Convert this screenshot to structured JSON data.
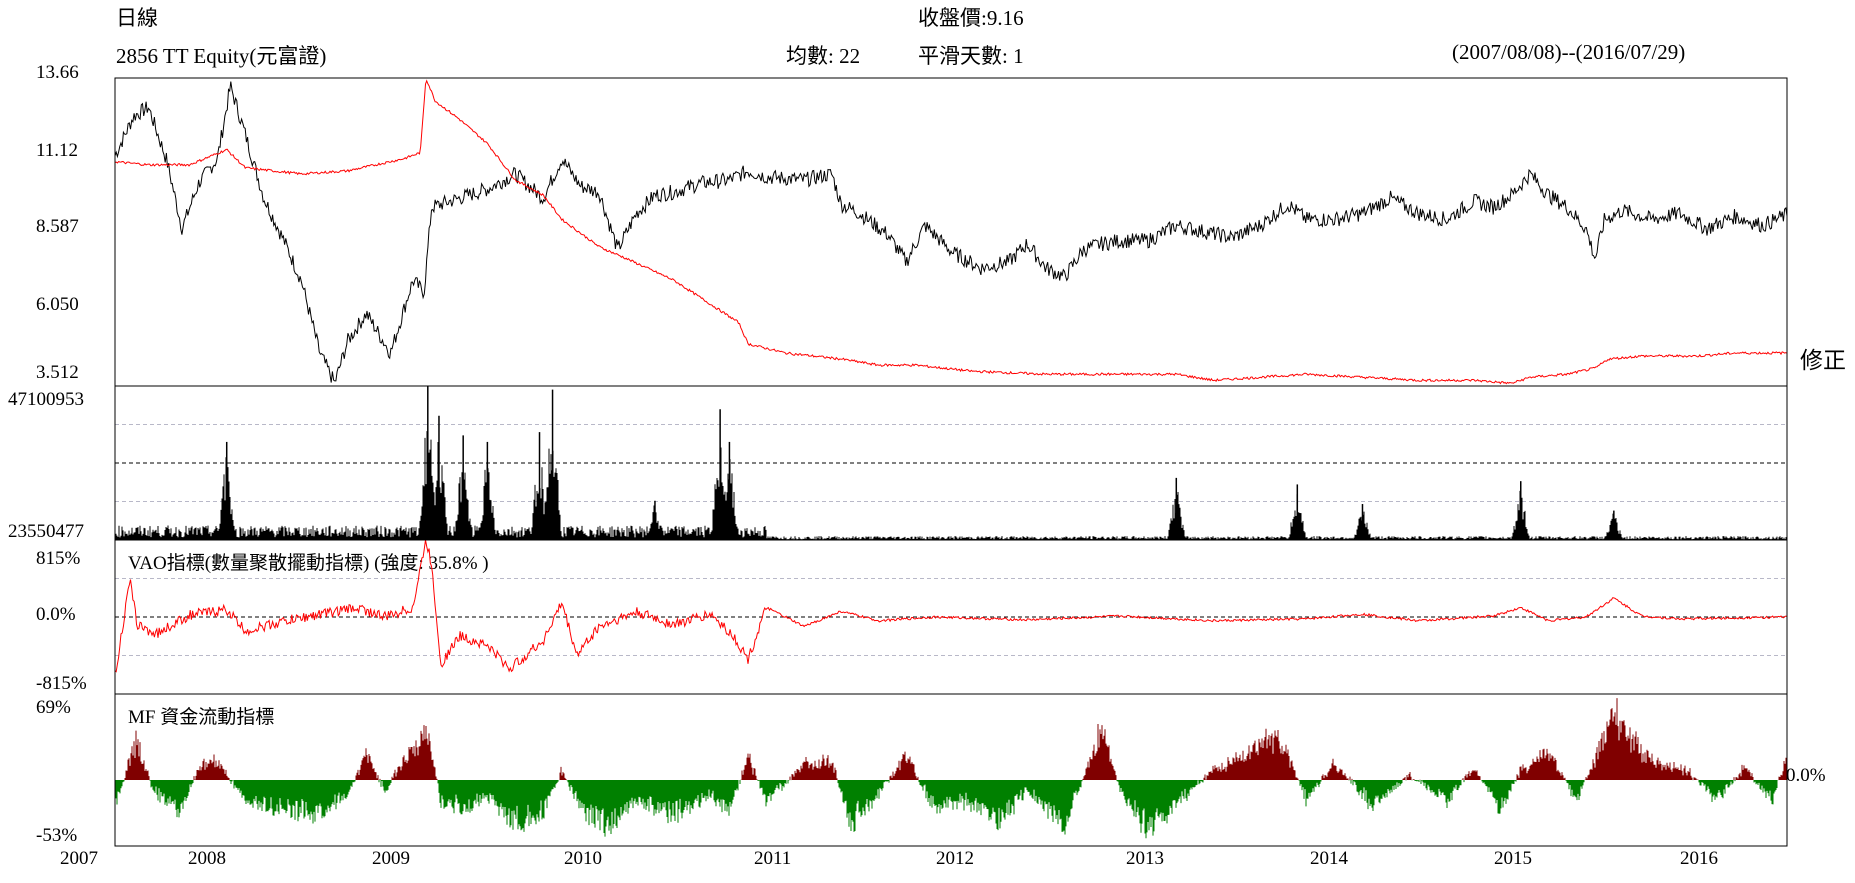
{
  "header": {
    "period": "日線",
    "close_label": "收盤價:",
    "close_value": "9.16",
    "ticker": "2856 TT Equity(元富證)",
    "avg_label": "均數:",
    "avg_value": "22",
    "smooth_label": "平滑天數:",
    "smooth_value": "1",
    "date_range": "(2007/08/08)--(2016/07/29)"
  },
  "colors": {
    "price": "#000000",
    "adjusted": "#ff0000",
    "volume": "#000000",
    "vao": "#ff0000",
    "mf_positive": "#800000",
    "mf_negative": "#008000",
    "grid": "#b8b8c8",
    "frame": "#000000"
  },
  "chart_data": [
    {
      "type": "line",
      "panel": "price",
      "y_ticks": [
        "13.66",
        "11.12",
        "8.587",
        "6.050",
        "3.512"
      ],
      "ylim": [
        3.512,
        13.66
      ],
      "series_label": "修正",
      "series": [
        {
          "name": "",
          "x": [
            2007.6,
            2007.7,
            2007.78,
            2007.88,
            2007.96,
            2008.05,
            2008.15,
            2008.22,
            2008.3,
            2008.4,
            2008.5,
            2008.6,
            2008.7,
            2008.78,
            2008.85,
            2008.95,
            2009.0,
            2009.08,
            2009.15,
            2009.2,
            2009.26,
            2009.3,
            2009.4,
            2009.5,
            2009.6,
            2009.75,
            2009.9,
            2010.0,
            2010.1,
            2010.2,
            2010.3,
            2010.4,
            2010.5,
            2010.6,
            2010.75,
            2010.9,
            2011.0,
            2011.1,
            2011.3,
            2011.45,
            2011.5,
            2011.6,
            2011.75,
            2011.85,
            2011.95,
            2012.1,
            2012.25,
            2012.4,
            2012.5,
            2012.6,
            2012.7,
            2012.8,
            2012.9,
            2013.0,
            2013.15,
            2013.3,
            2013.45,
            2013.6,
            2013.75,
            2013.9,
            2014.0,
            2014.15,
            2014.3,
            2014.45,
            2014.6,
            2014.75,
            2014.9,
            2015.0,
            2015.1,
            2015.2,
            2015.3,
            2015.4,
            2015.5,
            2015.55,
            2015.6,
            2015.7,
            2015.85,
            2016.0,
            2016.15,
            2016.3,
            2016.45,
            2016.58
          ],
          "y": [
            11.1,
            12.4,
            12.7,
            10.9,
            8.7,
            10.2,
            11.0,
            13.4,
            11.8,
            9.7,
            8.4,
            7.0,
            4.6,
            3.6,
            5.0,
            5.9,
            5.4,
            4.6,
            6.0,
            7.0,
            6.6,
            9.4,
            9.6,
            9.8,
            10.0,
            10.5,
            9.7,
            11.0,
            10.1,
            9.9,
            8.0,
            9.2,
            9.8,
            9.9,
            10.2,
            10.3,
            10.6,
            10.4,
            10.3,
            10.5,
            9.5,
            9.2,
            8.5,
            7.6,
            8.8,
            7.9,
            7.4,
            7.6,
            8.2,
            7.4,
            7.1,
            8.0,
            8.2,
            8.3,
            8.3,
            8.8,
            8.6,
            8.4,
            8.8,
            9.5,
            9.0,
            9.0,
            9.2,
            9.7,
            9.2,
            9.0,
            9.6,
            9.4,
            9.8,
            10.5,
            9.8,
            9.4,
            8.7,
            7.7,
            9.0,
            9.3,
            9.0,
            9.2,
            8.7,
            9.1,
            8.8,
            9.16
          ]
        },
        {
          "name": "",
          "x": [
            2007.6,
            2007.78,
            2008.0,
            2008.2,
            2008.3,
            2008.6,
            2008.85,
            2009.0,
            2009.15,
            2009.24,
            2009.27,
            2009.32,
            2009.45,
            2009.6,
            2009.75,
            2009.9,
            2010.0,
            2010.2,
            2010.35,
            2010.6,
            2010.8,
            2010.95,
            2011.0,
            2011.2,
            2011.5,
            2011.7,
            2011.9,
            2012.2,
            2012.6,
            2013.0,
            2013.3,
            2013.5,
            2013.75,
            2014.0,
            2014.3,
            2014.6,
            2014.9,
            2015.1,
            2015.2,
            2015.4,
            2015.55,
            2015.62,
            2015.8,
            2016.1,
            2016.3,
            2016.58
          ],
          "y": [
            10.9,
            10.8,
            10.8,
            11.3,
            10.7,
            10.5,
            10.6,
            10.8,
            11.0,
            11.2,
            13.66,
            12.9,
            12.3,
            11.5,
            10.3,
            9.8,
            9.0,
            8.1,
            7.7,
            7.0,
            6.2,
            5.6,
            4.9,
            4.6,
            4.4,
            4.2,
            4.2,
            4.0,
            3.9,
            3.9,
            3.9,
            3.7,
            3.8,
            3.9,
            3.8,
            3.7,
            3.7,
            3.6,
            3.8,
            3.9,
            4.1,
            4.4,
            4.5,
            4.5,
            4.6,
            4.6
          ]
        }
      ]
    },
    {
      "type": "bar",
      "panel": "volume",
      "y_ticks": [
        "47100953",
        "23550477"
      ],
      "ylim": [
        0,
        47100953
      ],
      "spikes": {
        "x": [
          2008.2,
          2009.28,
          2009.34,
          2009.47,
          2009.6,
          2009.88,
          2009.95,
          2010.5,
          2010.85,
          2010.9,
          2013.3,
          2013.95,
          2014.3,
          2015.15,
          2015.65
        ],
        "y": [
          30000000,
          47100953,
          38000000,
          32000000,
          30000000,
          33000000,
          46000000,
          12000000,
          40000000,
          30000000,
          19000000,
          17000000,
          11000000,
          18000000,
          9000000
        ]
      }
    },
    {
      "type": "line",
      "panel": "vao",
      "title": "VAO指標(數量聚散擺動指標) (強度: 35.8% )",
      "y_ticks": [
        "815%",
        "0.0%",
        "-815%"
      ],
      "ylim": [
        -815,
        815
      ],
      "series": [
        {
          "name": "",
          "x": [
            2007.6,
            2007.68,
            2007.72,
            2007.82,
            2008.0,
            2008.2,
            2008.3,
            2008.5,
            2008.7,
            2008.9,
            2009.05,
            2009.2,
            2009.27,
            2009.3,
            2009.35,
            2009.45,
            2009.6,
            2009.72,
            2009.9,
            2010.0,
            2010.08,
            2010.2,
            2010.4,
            2010.6,
            2010.8,
            2010.92,
            2011.0,
            2011.1,
            2011.3,
            2011.5,
            2011.7,
            2012.0,
            2012.5,
            2013.0,
            2013.5,
            2014.0,
            2014.3,
            2014.6,
            2015.0,
            2015.15,
            2015.3,
            2015.5,
            2015.65,
            2015.8,
            2016.0,
            2016.3,
            2016.58
          ],
          "y": [
            -620,
            380,
            -80,
            -180,
            20,
            80,
            -150,
            -50,
            30,
            100,
            0,
            100,
            815,
            560,
            -500,
            -200,
            -300,
            -550,
            -250,
            150,
            -400,
            -100,
            50,
            -80,
            30,
            -200,
            -450,
            100,
            -100,
            60,
            -40,
            0,
            -30,
            10,
            -40,
            -20,
            30,
            -40,
            10,
            100,
            -40,
            0,
            200,
            10,
            -20,
            -10,
            0
          ]
        }
      ]
    },
    {
      "type": "area",
      "panel": "mf",
      "title": "MF 資金流動指標",
      "y_ticks": [
        "69%",
        "-53%"
      ],
      "zero_label": "0.0%",
      "ylim": [
        -53,
        69
      ],
      "series": [
        {
          "name": "",
          "x": [
            2007.6,
            2007.72,
            2007.8,
            2007.95,
            2008.05,
            2008.15,
            2008.3,
            2008.5,
            2008.7,
            2008.85,
            2008.95,
            2009.05,
            2009.15,
            2009.28,
            2009.35,
            2009.5,
            2009.6,
            2009.75,
            2009.9,
            2010.0,
            2010.1,
            2010.25,
            2010.4,
            2010.6,
            2010.8,
            2010.9,
            2011.0,
            2011.1,
            2011.3,
            2011.45,
            2011.55,
            2011.7,
            2011.85,
            2012.0,
            2012.15,
            2012.35,
            2012.5,
            2012.7,
            2012.8,
            2012.9,
            2013.0,
            2013.15,
            2013.35,
            2013.5,
            2013.7,
            2013.85,
            2014.0,
            2014.15,
            2014.35,
            2014.55,
            2014.75,
            2014.9,
            2015.05,
            2015.15,
            2015.3,
            2015.45,
            2015.55,
            2015.65,
            2015.75,
            2015.9,
            2016.05,
            2016.2,
            2016.35,
            2016.5,
            2016.58
          ],
          "y": [
            -25,
            42,
            -10,
            -30,
            12,
            18,
            -20,
            -30,
            -32,
            -15,
            28,
            -12,
            20,
            45,
            -20,
            -30,
            -15,
            -42,
            -30,
            10,
            -30,
            -45,
            -20,
            -35,
            -15,
            -30,
            22,
            -20,
            15,
            20,
            -42,
            -15,
            25,
            -30,
            -20,
            -40,
            -10,
            -42,
            0,
            52,
            -10,
            -50,
            -15,
            10,
            28,
            45,
            -20,
            18,
            -25,
            5,
            -20,
            12,
            -30,
            10,
            28,
            -20,
            20,
            69,
            38,
            15,
            10,
            -20,
            12,
            -20,
            22
          ]
        }
      ]
    }
  ],
  "x_axis": {
    "labels": [
      "2007",
      "2008",
      "2009",
      "2010",
      "2011",
      "2012",
      "2013",
      "2014",
      "2015",
      "2016"
    ]
  }
}
